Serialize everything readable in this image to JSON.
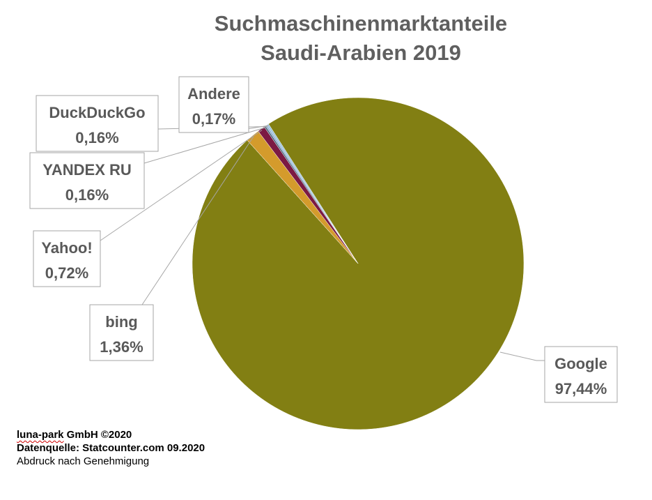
{
  "chart_data": {
    "type": "pie",
    "title_lines": [
      "Suchmaschinenmarktanteile",
      "Saudi-Arabien 2019"
    ],
    "slices": [
      {
        "name": "Google",
        "value": 97.44,
        "value_label": "97,44%",
        "color": "#827f13"
      },
      {
        "name": "bing",
        "value": 1.36,
        "value_label": "1,36%",
        "color": "#d49b2c"
      },
      {
        "name": "Yahoo!",
        "value": 0.72,
        "value_label": "0,72%",
        "color": "#7b1a43"
      },
      {
        "name": "YANDEX RU",
        "value": 0.16,
        "value_label": "0,16%",
        "color": "#4f6b7d"
      },
      {
        "name": "DuckDuckGo",
        "value": 0.16,
        "value_label": "0,16%",
        "color": "#8faed1"
      },
      {
        "name": "Andere",
        "value": 0.17,
        "value_label": "0,17%",
        "color": "#9cc3dc"
      }
    ]
  },
  "footer": {
    "company_word": "luna-park",
    "company_rest": " GmbH ©2020",
    "source": "Datenquelle: Statcounter.com 09.2020",
    "note": "Abdruck nach Genehmigung"
  }
}
